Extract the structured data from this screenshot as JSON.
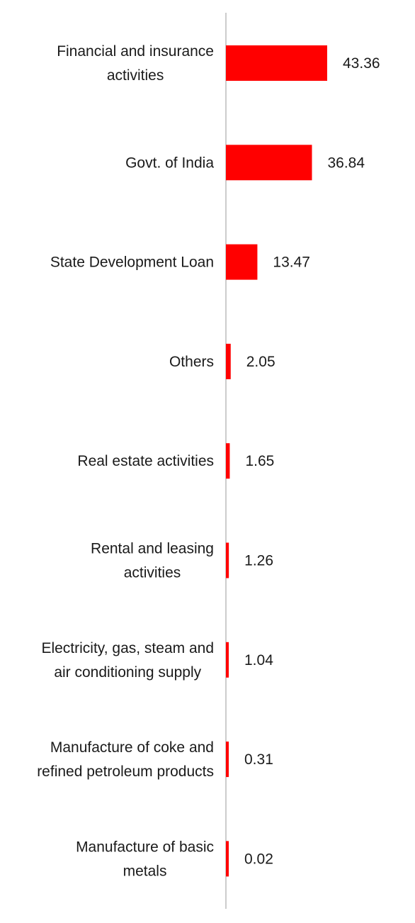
{
  "chart_data": {
    "type": "bar",
    "orientation": "horizontal",
    "categories": [
      [
        "Financial and insurance",
        "activities"
      ],
      [
        "Govt. of India"
      ],
      [
        "State Development Loan"
      ],
      [
        "Others"
      ],
      [
        "Real estate activities"
      ],
      [
        "Rental and leasing",
        "activities"
      ],
      [
        "Electricity, gas, steam and",
        "air conditioning supply"
      ],
      [
        "Manufacture of coke and",
        "refined petroleum products"
      ],
      [
        "Manufacture of basic",
        "metals"
      ]
    ],
    "values": [
      43.36,
      36.84,
      13.47,
      2.05,
      1.65,
      1.26,
      1.04,
      0.31,
      0.02
    ],
    "value_labels": [
      "43.36",
      "36.84",
      "13.47",
      "2.05",
      "1.65",
      "1.26",
      "1.04",
      "0.31",
      "0.02"
    ],
    "title": "",
    "xlabel": "",
    "ylabel": "",
    "xlim": [
      0,
      43.36
    ],
    "grid": false,
    "legend": "none",
    "colors": {
      "bar": "#ff0000",
      "axis": "#cccccc",
      "text": "#1a1a1a"
    }
  }
}
